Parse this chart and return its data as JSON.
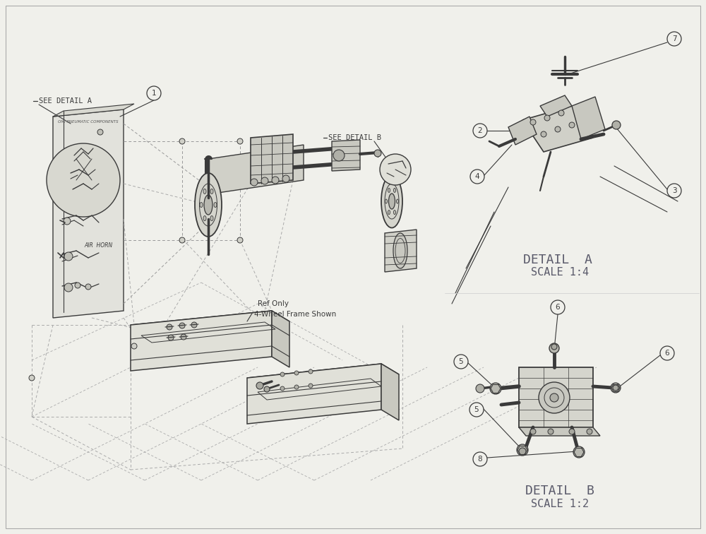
{
  "bg_color": "#f0f0eb",
  "line_color": "#3a3a3a",
  "dash_color": "#888888",
  "text_color": "#3a3a3a",
  "detail_a_label": "DETAIL  A",
  "detail_a_scale": "SCALE 1:4",
  "detail_b_label": "DETAIL  B",
  "detail_b_scale": "SCALE 1:2",
  "see_detail_a": "SEE DETAIL A",
  "see_detail_b": "SEE DETAIL B",
  "ref_only": "Ref Only",
  "four_wheel": "4-Wheel Frame Shown",
  "air_horn": "AIR  HORN",
  "omi_pneumatic": "OMI PNEUMATIC COMPONENTS"
}
